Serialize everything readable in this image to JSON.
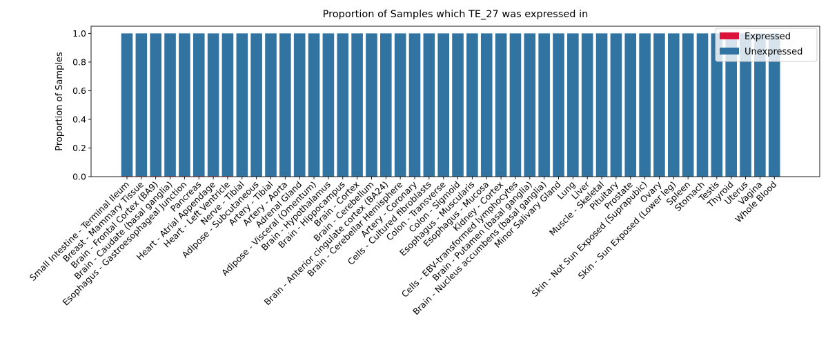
{
  "chart_data": {
    "type": "bar",
    "stacked": true,
    "title": "Proportion of Samples which TE_27 was expressed in",
    "xlabel": "",
    "ylabel": "Proportion of Samples",
    "ylim": [
      0,
      1.05
    ],
    "yticks": [
      0.0,
      0.2,
      0.4,
      0.6,
      0.8,
      1.0
    ],
    "ytick_labels": [
      "0.0",
      "0.2",
      "0.4",
      "0.6",
      "0.8",
      "1.0"
    ],
    "legend_position": "top-right",
    "grid": false,
    "categories": [
      "Small Intestine - Terminal Ileum",
      "Breast - Mammary Tissue",
      "Brain - Frontal Cortex (BA9)",
      "Brain - Caudate (basal ganglia)",
      "Esophagus - Gastroesophageal Junction",
      "Pancreas",
      "Heart - Atrial Appendage",
      "Heart - Left Ventricle",
      "Nerve - Tibial",
      "Adipose - Subcutaneous",
      "Artery - Tibial",
      "Artery - Aorta",
      "Adrenal Gland",
      "Adipose - Visceral (Omentum)",
      "Brain - Hypothalamus",
      "Brain - Hippocampus",
      "Brain - Cortex",
      "Brain - Cerebellum",
      "Brain - Anterior cingulate cortex (BA24)",
      "Brain - Cerebellar Hemisphere",
      "Artery - Coronary",
      "Cells - Cultured fibroblasts",
      "Colon - Transverse",
      "Colon - Sigmoid",
      "Esophagus - Muscularis",
      "Esophagus - Mucosa",
      "Kidney - Cortex",
      "Cells - EBV-transformed lymphocytes",
      "Brain - Putamen (basal ganglia)",
      "Brain - Nucleus accumbens (basal ganglia)",
      "Minor Salivary Gland",
      "Lung",
      "Liver",
      "Muscle - Skeletal",
      "Pituitary",
      "Prostate",
      "Skin - Not Sun Exposed (Suprapubic)",
      "Ovary",
      "Skin - Sun Exposed (Lower leg)",
      "Spleen",
      "Stomach",
      "Testis",
      "Thyroid",
      "Uterus",
      "Vagina",
      "Whole Blood"
    ],
    "series": [
      {
        "name": "Expressed",
        "color": "#dc143c",
        "values": [
          0.004,
          0.004,
          0.004,
          0.004,
          0.004,
          0.004,
          0.004,
          0.004,
          0,
          0,
          0,
          0,
          0,
          0,
          0,
          0,
          0,
          0,
          0,
          0,
          0,
          0,
          0,
          0,
          0,
          0,
          0,
          0,
          0,
          0,
          0,
          0,
          0,
          0,
          0,
          0,
          0,
          0,
          0,
          0,
          0,
          0,
          0,
          0,
          0,
          0
        ]
      },
      {
        "name": "Unexpressed",
        "color": "#3274a1",
        "values": [
          0.996,
          0.996,
          0.996,
          0.996,
          0.996,
          0.996,
          0.996,
          0.996,
          1,
          1,
          1,
          1,
          1,
          1,
          1,
          1,
          1,
          1,
          1,
          1,
          1,
          1,
          1,
          1,
          1,
          1,
          1,
          1,
          1,
          1,
          1,
          1,
          1,
          1,
          1,
          1,
          1,
          1,
          1,
          1,
          1,
          1,
          1,
          1,
          1,
          1
        ]
      }
    ]
  }
}
